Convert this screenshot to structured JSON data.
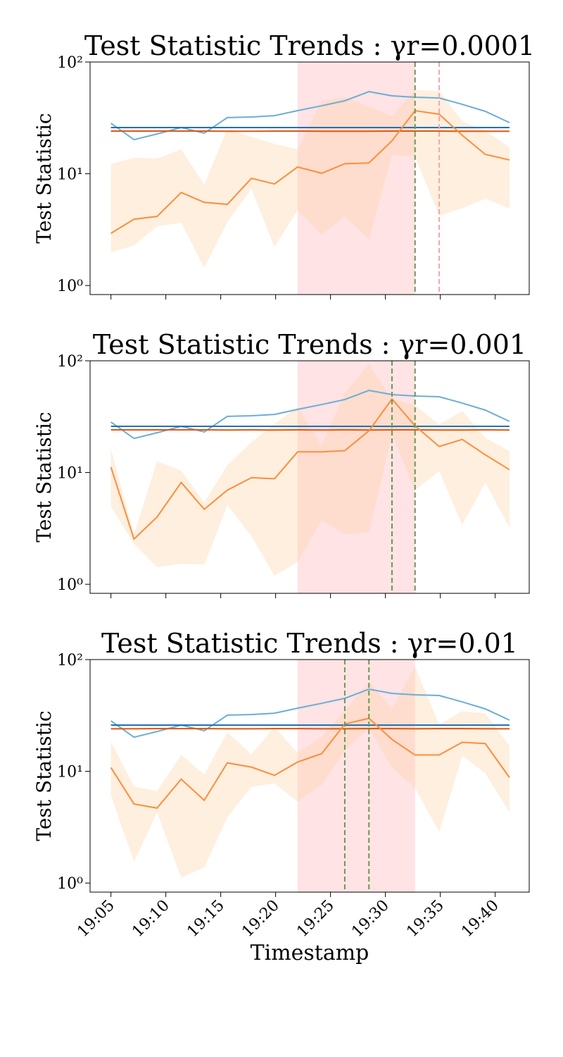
{
  "chart_data": [
    {
      "type": "line",
      "title": "Test Statistic Trends : γr=0.0001",
      "ylabel": "Test Statistic",
      "log_y": true,
      "x": [
        5.0,
        7.1,
        9.2,
        11.4,
        13.5,
        15.6,
        17.8,
        19.9,
        22.0,
        24.2,
        26.3,
        28.5,
        30.6,
        32.7,
        34.9,
        37.0,
        39.1,
        41.3
      ],
      "xlim": [
        3.1,
        43.1
      ],
      "xticks": [
        5,
        10,
        15,
        20,
        25,
        30,
        35,
        40
      ],
      "ylim": [
        0.83,
        100
      ],
      "yticks": [
        {
          "value": 1,
          "label": "10⁰"
        },
        {
          "value": 10,
          "label": "10¹"
        },
        {
          "value": 100,
          "label": "10²"
        }
      ],
      "shaded_region": {
        "start": 22.0,
        "end": 32.7,
        "color": "#ff9aa2"
      },
      "vlines": [
        {
          "x": 32.7,
          "color": "#6a9a50"
        },
        {
          "x": 34.9,
          "color": "#f4a6a6"
        }
      ],
      "series": [
        {
          "color": "#6baed6",
          "values": [
            28.3,
            20.2,
            22.7,
            25.9,
            23.1,
            31.8,
            32.2,
            33.1,
            36.7,
            40.6,
            45.0,
            54.3,
            49.8,
            48.4,
            47.7,
            41.8,
            36.2,
            28.7
          ]
        },
        {
          "color": "#2171b5",
          "values": [
            25.9,
            25.9,
            25.9,
            25.9,
            25.9,
            25.9,
            25.9,
            25.9,
            25.9,
            25.9,
            25.9,
            25.9,
            25.9,
            25.9,
            25.9,
            25.9,
            25.9,
            25.9
          ]
        },
        {
          "color": "#e6550d",
          "values": [
            24.1,
            24.1,
            24.1,
            24.1,
            24.1,
            24.0,
            24.0,
            24.1,
            24.1,
            24.0,
            24.0,
            24.0,
            24.1,
            24.1,
            24.1,
            24.0,
            24.0,
            24.0
          ]
        },
        {
          "color": "#fd8d3c",
          "band_color": "#fdd0a2",
          "values": [
            2.93,
            3.92,
            4.15,
            6.8,
            5.55,
            5.32,
            9.1,
            8.1,
            11.5,
            10.1,
            12.3,
            12.5,
            19.7,
            36.7,
            34.1,
            22.1,
            14.9,
            13.3
          ],
          "upper": [
            12.2,
            13.9,
            13.7,
            16.5,
            8.0,
            25.2,
            21.4,
            18.5,
            16.5,
            45,
            48.4,
            40,
            32.7,
            56,
            55,
            29.5,
            24.4,
            17.2
          ],
          "lower": [
            1.98,
            2.29,
            3.39,
            3.64,
            1.44,
            3.7,
            7.3,
            2.22,
            4.73,
            2.85,
            4.15,
            2.61,
            14.7,
            14.3,
            4.2,
            4.94,
            5.97,
            4.87
          ]
        }
      ]
    },
    {
      "type": "line",
      "title": "Test Statistic Trends : γr=0.001",
      "ylabel": "Test Statistic",
      "log_y": true,
      "x": [
        5.0,
        7.1,
        9.2,
        11.4,
        13.5,
        15.6,
        17.8,
        19.9,
        22.0,
        24.2,
        26.3,
        28.5,
        30.6,
        32.7,
        34.9,
        37.0,
        39.1,
        41.3
      ],
      "xlim": [
        3.1,
        43.1
      ],
      "xticks": [
        5,
        10,
        15,
        20,
        25,
        30,
        35,
        40
      ],
      "ylim": [
        0.83,
        100
      ],
      "yticks": [
        {
          "value": 1,
          "label": "10⁰"
        },
        {
          "value": 10,
          "label": "10¹"
        },
        {
          "value": 100,
          "label": "10²"
        }
      ],
      "shaded_region": {
        "start": 22.0,
        "end": 32.7,
        "color": "#ff9aa2"
      },
      "vlines": [
        {
          "x": 30.6,
          "color": "#6a9a50"
        },
        {
          "x": 32.7,
          "color": "#6a9a50"
        }
      ],
      "series": [
        {
          "color": "#6baed6",
          "values": [
            28.3,
            20.2,
            22.7,
            25.9,
            23.1,
            31.8,
            32.2,
            33.1,
            36.7,
            40.6,
            45.0,
            54.3,
            49.8,
            48.4,
            47.7,
            41.8,
            36.2,
            28.7
          ]
        },
        {
          "color": "#2171b5",
          "values": [
            25.9,
            25.9,
            25.9,
            25.9,
            25.9,
            25.9,
            25.9,
            25.9,
            25.9,
            25.9,
            25.9,
            25.9,
            25.9,
            25.9,
            25.9,
            25.9,
            25.9,
            25.9
          ]
        },
        {
          "color": "#e6550d",
          "values": [
            24.1,
            24.1,
            24.1,
            24.1,
            24.1,
            24.0,
            24.1,
            24.0,
            24.1,
            24.0,
            24.1,
            24.0,
            24.1,
            24.1,
            24.0,
            24.0,
            24.1,
            24.0
          ]
        },
        {
          "color": "#fd8d3c",
          "band_color": "#fdd0a2",
          "values": [
            11.2,
            2.54,
            4.0,
            8.15,
            4.69,
            6.95,
            9.0,
            8.8,
            15.3,
            15.3,
            15.7,
            23.6,
            45.5,
            26.2,
            17.1,
            19.8,
            14.4,
            10.6
          ],
          "upper": [
            16.2,
            2.8,
            12.6,
            10.4,
            5.4,
            11.6,
            18.7,
            27.3,
            38.2,
            17.4,
            51.9,
            93,
            45.5,
            39.9,
            26.9,
            35.5,
            20.4,
            15.5
          ],
          "lower": [
            4.97,
            2.3,
            1.42,
            1.53,
            1.5,
            5.1,
            2.7,
            1.19,
            1.59,
            3.77,
            2.81,
            2.94,
            22,
            6.95,
            10.3,
            3.4,
            8.15,
            3.21
          ]
        }
      ]
    },
    {
      "type": "line",
      "title": "Test Statistic Trends : γr=0.01",
      "ylabel": "Test Statistic",
      "xlabel": "Timestamp",
      "log_y": true,
      "x": [
        5.0,
        7.1,
        9.2,
        11.4,
        13.5,
        15.6,
        17.8,
        19.9,
        22.0,
        24.2,
        26.3,
        28.5,
        30.6,
        32.7,
        34.9,
        37.0,
        39.1,
        41.3
      ],
      "xlim": [
        3.1,
        43.1
      ],
      "xticks": [
        {
          "value": 5,
          "label": "19:05"
        },
        {
          "value": 10,
          "label": "19:10"
        },
        {
          "value": 15,
          "label": "19:15"
        },
        {
          "value": 20,
          "label": "19:20"
        },
        {
          "value": 25,
          "label": "19:25"
        },
        {
          "value": 30,
          "label": "19:30"
        },
        {
          "value": 35,
          "label": "19:35"
        },
        {
          "value": 40,
          "label": "19:40"
        }
      ],
      "ylim": [
        0.83,
        100
      ],
      "yticks": [
        {
          "value": 1,
          "label": "10⁰"
        },
        {
          "value": 10,
          "label": "10¹"
        },
        {
          "value": 100,
          "label": "10²"
        }
      ],
      "shaded_region": {
        "start": 22.0,
        "end": 32.7,
        "color": "#ff9aa2"
      },
      "vlines": [
        {
          "x": 26.3,
          "color": "#6a9a50"
        },
        {
          "x": 28.5,
          "color": "#6a9a50"
        }
      ],
      "series": [
        {
          "color": "#6baed6",
          "values": [
            28.3,
            20.2,
            22.7,
            25.9,
            23.1,
            31.8,
            32.2,
            33.1,
            36.7,
            40.6,
            45.0,
            54.3,
            49.8,
            48.4,
            47.7,
            41.8,
            36.2,
            28.7
          ]
        },
        {
          "color": "#2171b5",
          "values": [
            25.9,
            25.9,
            25.9,
            25.9,
            25.9,
            25.9,
            25.9,
            25.9,
            25.9,
            25.9,
            25.9,
            25.9,
            25.9,
            25.9,
            25.9,
            25.9,
            25.9,
            25.9
          ]
        },
        {
          "color": "#e6550d",
          "values": [
            24.0,
            24.0,
            24.1,
            24.1,
            24.1,
            24.0,
            24.0,
            24.1,
            24.1,
            24.0,
            24.0,
            24.1,
            24.1,
            24.0,
            24.1,
            24.1,
            24.0,
            24.0
          ]
        },
        {
          "color": "#fd8d3c",
          "band_color": "#fdd0a2",
          "values": [
            10.8,
            5.1,
            4.69,
            8.5,
            5.5,
            11.9,
            10.9,
            9.2,
            12.1,
            14.4,
            26.5,
            29.8,
            19.3,
            14.0,
            14.0,
            18.2,
            17.7,
            8.8
          ],
          "upper": [
            18.4,
            7.3,
            6.65,
            14,
            9.4,
            22.3,
            14.2,
            25,
            14.6,
            20.4,
            35,
            62.7,
            36.6,
            86.4,
            26.2,
            34.5,
            33,
            16.9
          ],
          "lower": [
            6.1,
            1.55,
            4.3,
            1.12,
            1.38,
            3.88,
            7.26,
            7.8,
            5.35,
            7.6,
            15.3,
            24.3,
            10.8,
            7.15,
            2.86,
            13.8,
            9.6,
            4.3
          ]
        }
      ]
    }
  ]
}
